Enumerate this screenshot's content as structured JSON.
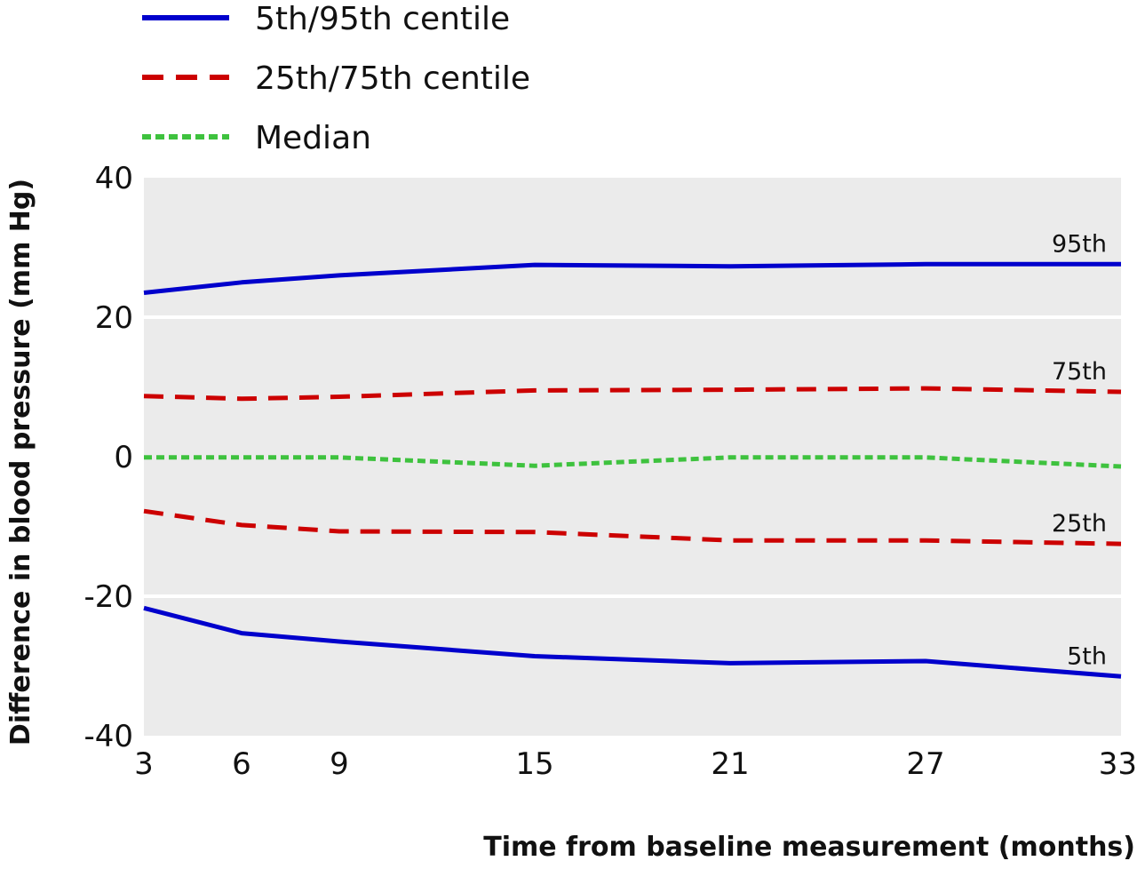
{
  "chart_data": {
    "type": "line",
    "xlabel": "Time from baseline measurement (months)",
    "ylabel": "Difference in blood pressure (mm Hg)",
    "xlim": [
      3,
      33
    ],
    "ylim": [
      -40,
      40
    ],
    "x_ticks": [
      3,
      6,
      9,
      15,
      21,
      27,
      33
    ],
    "y_ticks": [
      -40,
      -20,
      0,
      20,
      40
    ],
    "y_tick_labels": [
      "-40",
      "-20",
      "0",
      "20",
      "40"
    ],
    "legend_position": "top-left",
    "background_color": "#ebebeb",
    "legend": [
      {
        "label": "5th/95th centile",
        "color": "#0000cc",
        "style": "solid"
      },
      {
        "label": "25th/75th centile",
        "color": "#cc0000",
        "style": "dashed"
      },
      {
        "label": "Median",
        "color": "#3ec23e",
        "style": "dotted"
      }
    ],
    "series": [
      {
        "name": "95th",
        "style": "solid",
        "color": "#0000cc",
        "x": [
          3,
          6,
          9,
          15,
          21,
          27,
          33
        ],
        "y": [
          23.5,
          25,
          26,
          27.5,
          27.3,
          27.6,
          27.6
        ]
      },
      {
        "name": "75th",
        "style": "dashed",
        "color": "#cc0000",
        "x": [
          3,
          6,
          9,
          15,
          21,
          27,
          33
        ],
        "y": [
          8.7,
          8.3,
          8.6,
          9.5,
          9.6,
          9.8,
          9.3
        ]
      },
      {
        "name": "",
        "style": "dotted",
        "color": "#3ec23e",
        "x": [
          3,
          6,
          9,
          15,
          21,
          27,
          33
        ],
        "y": [
          -0.1,
          -0.1,
          -0.1,
          -1.3,
          -0.1,
          -0.1,
          -1.4
        ]
      },
      {
        "name": "25th",
        "style": "dashed",
        "color": "#cc0000",
        "x": [
          3,
          6,
          9,
          15,
          21,
          27,
          33
        ],
        "y": [
          -7.8,
          -9.8,
          -10.7,
          -10.8,
          -12,
          -12,
          -12.5
        ]
      },
      {
        "name": "5th",
        "style": "solid",
        "color": "#0000cc",
        "x": [
          3,
          6,
          9,
          15,
          21,
          27,
          33
        ],
        "y": [
          -21.7,
          -25.3,
          -26.5,
          -28.6,
          -29.6,
          -29.3,
          -31.5
        ]
      }
    ]
  }
}
